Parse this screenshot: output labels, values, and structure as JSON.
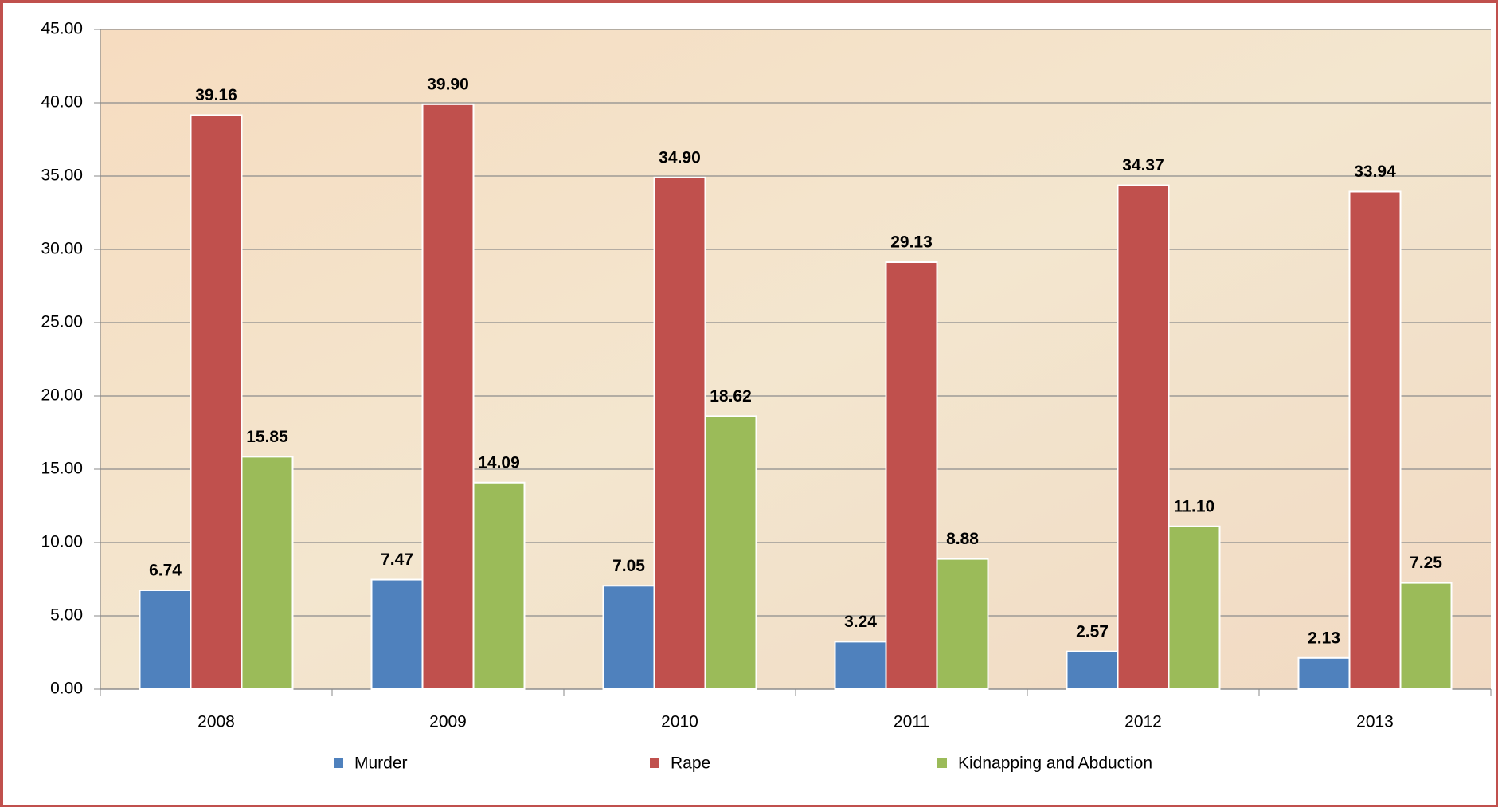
{
  "chart_data": {
    "type": "bar",
    "categories": [
      "2008",
      "2009",
      "2010",
      "2011",
      "2012",
      "2013"
    ],
    "series": [
      {
        "name": "Murder",
        "color": "#4f81bd",
        "values": [
          6.74,
          7.47,
          7.05,
          3.24,
          2.57,
          2.13
        ],
        "value_labels": [
          "6.74",
          "7.47",
          "7.05",
          "3.24",
          "2.57",
          "2.13"
        ]
      },
      {
        "name": "Rape",
        "color": "#c0504d",
        "values": [
          39.16,
          39.9,
          34.9,
          29.13,
          34.37,
          33.94
        ],
        "value_labels": [
          "39.16",
          "39.90",
          "34.90",
          "29.13",
          "34.37",
          "33.94"
        ]
      },
      {
        "name": "Kidnapping and Abduction",
        "color": "#9bbb59",
        "values": [
          15.85,
          14.09,
          18.62,
          8.88,
          11.1,
          7.25
        ],
        "value_labels": [
          "15.85",
          "14.09",
          "18.62",
          "8.88",
          "11.10",
          "7.25"
        ]
      }
    ],
    "ylim": [
      0,
      45
    ],
    "yticks": [
      {
        "value": 0,
        "label": "0.00"
      },
      {
        "value": 5,
        "label": "5.00"
      },
      {
        "value": 10,
        "label": "10.00"
      },
      {
        "value": 15,
        "label": "15.00"
      },
      {
        "value": 20,
        "label": "20.00"
      },
      {
        "value": 25,
        "label": "25.00"
      },
      {
        "value": 30,
        "label": "30.00"
      },
      {
        "value": 35,
        "label": "35.00"
      },
      {
        "value": 40,
        "label": "40.00"
      },
      {
        "value": 45,
        "label": "45.00"
      }
    ],
    "grid": true,
    "legend": "bottom"
  }
}
